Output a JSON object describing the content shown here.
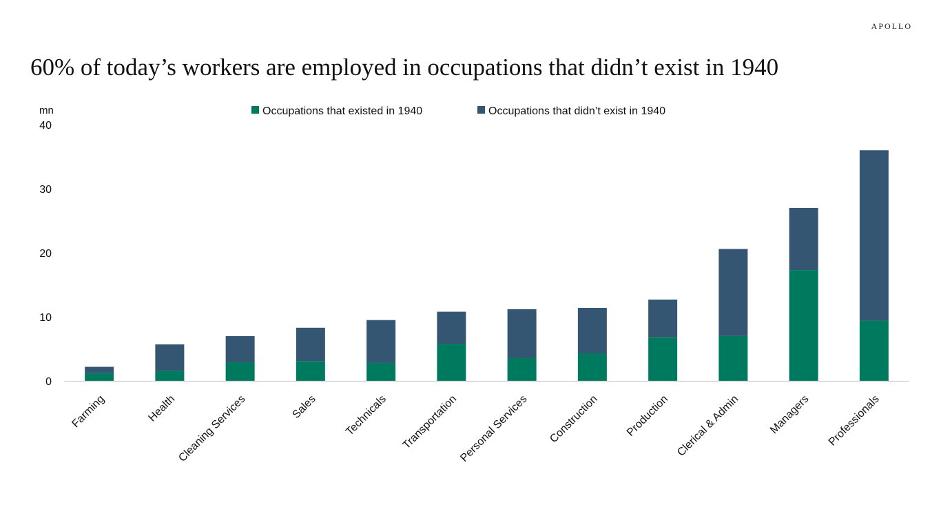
{
  "header": {
    "brand": "APOLLO",
    "title": "60% of today’s workers are employed in occupations that didn’t exist in 1940"
  },
  "colors": {
    "existed": "#007A5E",
    "new": "#355673",
    "axis": "#d0d0d0"
  },
  "chart_data": {
    "type": "bar",
    "stacked": true,
    "unit_label": "mn",
    "ylim": [
      0,
      40
    ],
    "yticks": [
      0,
      10,
      20,
      30,
      40
    ],
    "legend_position": "top",
    "grid": false,
    "categories": [
      "Farming",
      "Health",
      "Cleaning Services",
      "Sales",
      "Technicals",
      "Transportation",
      "Personal Services",
      "Construction",
      "Production",
      "Clerical & Admin",
      "Managers",
      "Professionals"
    ],
    "series": [
      {
        "name": "Occupations that existed in 1940",
        "color": "#007A5E",
        "values": [
          1.2,
          1.6,
          2.9,
          3.1,
          2.8,
          5.8,
          3.6,
          4.3,
          6.8,
          7.0,
          17.3,
          9.4
        ]
      },
      {
        "name": "Occupations that didn’t exist in 1940",
        "color": "#355673",
        "values": [
          1.0,
          4.1,
          4.1,
          5.2,
          6.7,
          5.0,
          7.6,
          7.1,
          5.9,
          13.6,
          9.7,
          26.6
        ]
      }
    ]
  }
}
